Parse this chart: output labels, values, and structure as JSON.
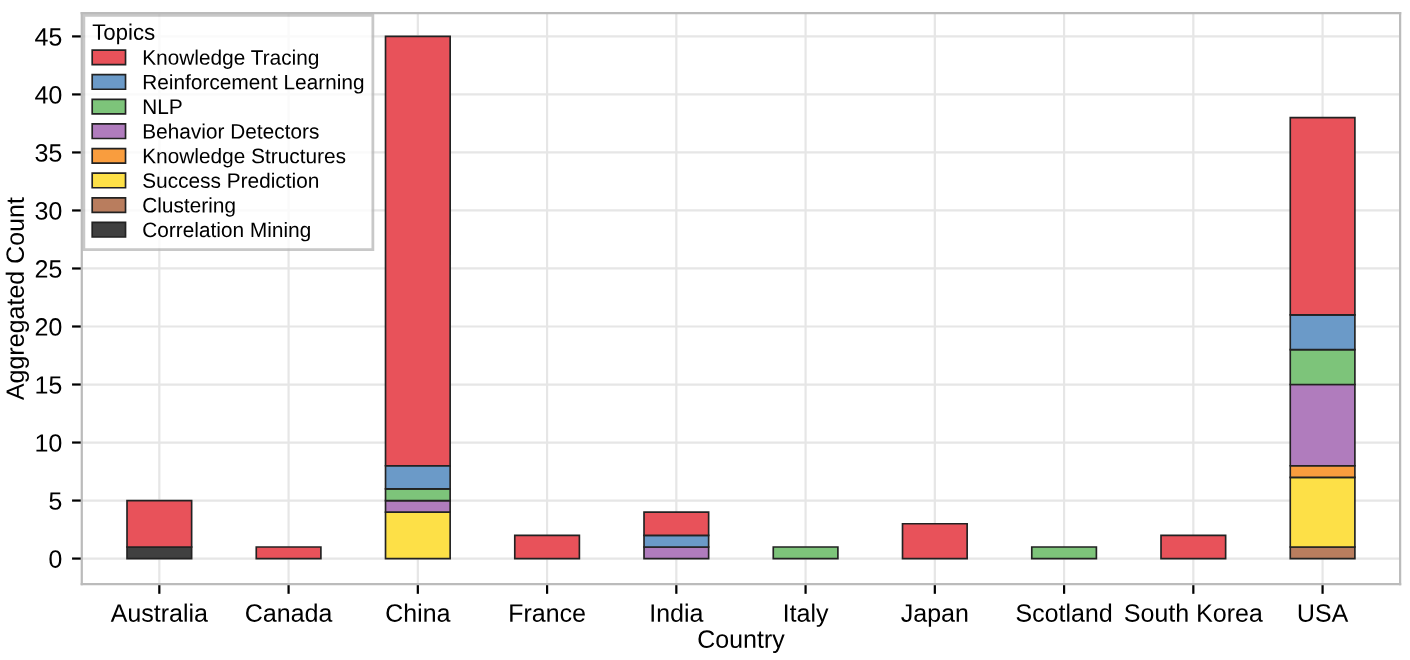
{
  "chart_data": {
    "type": "bar",
    "stacked": true,
    "xlabel": "Country",
    "ylabel": "Aggregated Count",
    "legend_title": "Topics",
    "legend": "top left",
    "grid": true,
    "categories": [
      "Australia",
      "Canada",
      "China",
      "France",
      "India",
      "Italy",
      "Japan",
      "Scotland",
      "South Korea",
      "USA"
    ],
    "ylim": [
      -2.2,
      47
    ],
    "yticks": [
      0,
      5,
      10,
      15,
      20,
      25,
      30,
      35,
      40,
      45
    ],
    "series": [
      {
        "name": "Correlation Mining",
        "color": "#404040",
        "values": [
          1,
          0,
          0,
          0,
          0,
          0,
          0,
          0,
          0,
          0
        ]
      },
      {
        "name": "Clustering",
        "color": "#b97d5e",
        "values": [
          0,
          0,
          0,
          0,
          0,
          0,
          0,
          0,
          0,
          1
        ]
      },
      {
        "name": "Success Prediction",
        "color": "#fde047",
        "values": [
          0,
          0,
          4,
          0,
          0,
          0,
          0,
          0,
          0,
          6
        ]
      },
      {
        "name": "Knowledge Structures",
        "color": "#f99d3e",
        "values": [
          0,
          0,
          0,
          0,
          0,
          0,
          0,
          0,
          0,
          1
        ]
      },
      {
        "name": "Behavior Detectors",
        "color": "#b07cbd",
        "values": [
          0,
          0,
          1,
          0,
          1,
          0,
          0,
          0,
          0,
          7
        ]
      },
      {
        "name": "NLP",
        "color": "#7dc47a",
        "values": [
          0,
          0,
          1,
          0,
          0,
          1,
          0,
          1,
          0,
          3
        ]
      },
      {
        "name": "Reinforcement Learning",
        "color": "#6b9ac8",
        "values": [
          0,
          0,
          2,
          0,
          1,
          0,
          0,
          0,
          0,
          3
        ]
      },
      {
        "name": "Knowledge Tracing",
        "color": "#e8525a",
        "values": [
          4,
          1,
          37,
          2,
          2,
          0,
          3,
          0,
          2,
          17
        ]
      }
    ]
  }
}
